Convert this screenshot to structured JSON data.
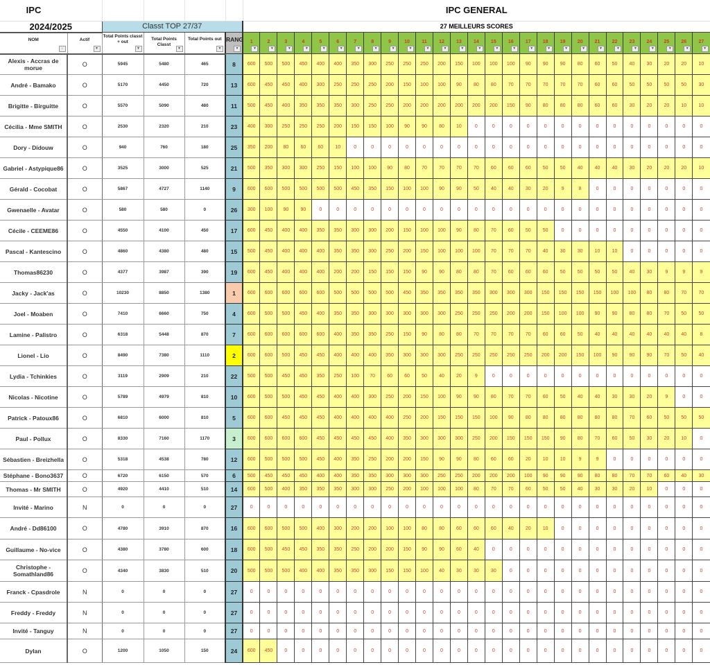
{
  "header": {
    "title_left": "IPC",
    "title_main": "IPC GENERAL",
    "season": "2024/2025",
    "classt_label": "Classt TOP 27/37",
    "best_label": "27 MEILLEURS SCORES",
    "columns": {
      "nom": "NOM",
      "actif": "Actif",
      "total_classt_out": "Total Points classt + out",
      "total_classt": "Total Points Classt",
      "total_out": "Total Points out",
      "rang": "RANG"
    },
    "score_columns": [
      "1",
      "2",
      "3",
      "4",
      "5",
      "6",
      "7",
      "8",
      "9",
      "10",
      "11",
      "12",
      "13",
      "14",
      "15",
      "16",
      "17",
      "18",
      "19",
      "20",
      "21",
      "22",
      "23",
      "24",
      "25",
      "26",
      "27"
    ],
    "filter_icon": "dropdown-arrow-icon"
  },
  "colors": {
    "score_header": "#8fc647",
    "score_filled": "#ffff99",
    "score_empty": "#ffffff",
    "rang": "#9ecad6",
    "rang_1": "#f8cbad",
    "rang_2": "#ffff00",
    "rang_3": "#c6efce",
    "classt": "#b7dee8",
    "score_text": "#cc3b2a"
  },
  "rows": [
    {
      "name": "Alexis - Accras de morue",
      "actif": "O",
      "total_classt_out": "5945",
      "total_classt": "5480",
      "total_out": "465",
      "rang": "8",
      "scores": [
        600,
        500,
        500,
        450,
        400,
        400,
        350,
        300,
        250,
        250,
        250,
        200,
        150,
        100,
        100,
        100,
        90,
        90,
        90,
        80,
        60,
        50,
        40,
        30,
        20,
        20,
        10
      ]
    },
    {
      "name": "André - Bamako",
      "actif": "O",
      "total_classt_out": "5170",
      "total_classt": "4450",
      "total_out": "720",
      "rang": "13",
      "scores": [
        600,
        450,
        450,
        400,
        300,
        250,
        250,
        250,
        200,
        150,
        100,
        100,
        90,
        80,
        80,
        70,
        70,
        70,
        70,
        70,
        60,
        60,
        50,
        50,
        50,
        50,
        30
      ]
    },
    {
      "name": "Brigitte - Birguitte",
      "actif": "O",
      "total_classt_out": "5570",
      "total_classt": "5090",
      "total_out": "480",
      "rang": "11",
      "scores": [
        500,
        450,
        400,
        350,
        350,
        350,
        300,
        250,
        250,
        200,
        200,
        200,
        200,
        200,
        200,
        150,
        90,
        80,
        80,
        80,
        60,
        60,
        30,
        20,
        20,
        10,
        10
      ]
    },
    {
      "name": "Cécilia - Mme SMITH",
      "actif": "O",
      "total_classt_out": "2530",
      "total_classt": "2320",
      "total_out": "210",
      "rang": "23",
      "scores": [
        400,
        300,
        250,
        250,
        250,
        200,
        150,
        150,
        100,
        90,
        90,
        80,
        10,
        0,
        0,
        0,
        0,
        0,
        0,
        0,
        0,
        0,
        0,
        0,
        0,
        0,
        0
      ]
    },
    {
      "name": "Dory - Didouw",
      "actif": "O",
      "total_classt_out": "940",
      "total_classt": "760",
      "total_out": "180",
      "rang": "25",
      "scores": [
        350,
        200,
        80,
        60,
        60,
        10,
        0,
        0,
        0,
        0,
        0,
        0,
        0,
        0,
        0,
        0,
        0,
        0,
        0,
        0,
        0,
        0,
        0,
        0,
        0,
        0,
        0
      ]
    },
    {
      "name": "Gabriel - Astypique86",
      "actif": "O",
      "total_classt_out": "3525",
      "total_classt": "3000",
      "total_out": "525",
      "rang": "21",
      "scores": [
        500,
        350,
        300,
        300,
        250,
        150,
        100,
        100,
        90,
        80,
        70,
        70,
        70,
        70,
        60,
        60,
        60,
        50,
        50,
        40,
        40,
        40,
        30,
        20,
        20,
        20,
        10
      ]
    },
    {
      "name": "Gérald - Cocobat",
      "actif": "O",
      "total_classt_out": "5867",
      "total_classt": "4727",
      "total_out": "1140",
      "rang": "9",
      "scores": [
        600,
        600,
        500,
        500,
        500,
        500,
        450,
        350,
        150,
        100,
        100,
        90,
        90,
        50,
        40,
        40,
        30,
        20,
        9,
        8,
        0,
        0,
        0,
        0,
        0,
        0,
        0
      ]
    },
    {
      "name": "Gwenaelle - Avatar",
      "actif": "O",
      "total_classt_out": "580",
      "total_classt": "580",
      "total_out": "0",
      "rang": "26",
      "scores": [
        300,
        100,
        90,
        90,
        0,
        0,
        0,
        0,
        0,
        0,
        0,
        0,
        0,
        0,
        0,
        0,
        0,
        0,
        0,
        0,
        0,
        0,
        0,
        0,
        0,
        0,
        0
      ]
    },
    {
      "name": "Cécile - CEEME86",
      "actif": "O",
      "total_classt_out": "4550",
      "total_classt": "4100",
      "total_out": "450",
      "rang": "17",
      "scores": [
        600,
        450,
        400,
        400,
        350,
        350,
        300,
        300,
        200,
        150,
        100,
        100,
        90,
        80,
        70,
        60,
        50,
        50,
        0,
        0,
        0,
        0,
        0,
        0,
        0,
        0,
        0
      ]
    },
    {
      "name": "Pascal - Kantescino",
      "actif": "O",
      "total_classt_out": "4860",
      "total_classt": "4380",
      "total_out": "480",
      "rang": "15",
      "scores": [
        500,
        450,
        400,
        400,
        400,
        350,
        350,
        300,
        250,
        200,
        150,
        100,
        100,
        100,
        70,
        70,
        70,
        40,
        30,
        30,
        10,
        10,
        0,
        0,
        0,
        0,
        0
      ]
    },
    {
      "name": "Thomas86230",
      "actif": "O",
      "total_classt_out": "4377",
      "total_classt": "3987",
      "total_out": "390",
      "rang": "19",
      "scores": [
        600,
        450,
        400,
        400,
        400,
        200,
        200,
        150,
        150,
        150,
        90,
        90,
        80,
        80,
        70,
        60,
        60,
        60,
        50,
        50,
        50,
        50,
        40,
        30,
        9,
        9,
        9
      ]
    },
    {
      "name": "Jacky - Jack'as",
      "actif": "O",
      "total_classt_out": "10230",
      "total_classt": "8850",
      "total_out": "1380",
      "rang": "1",
      "scores": [
        600,
        600,
        600,
        600,
        600,
        500,
        500,
        500,
        500,
        450,
        350,
        350,
        350,
        350,
        300,
        300,
        300,
        150,
        150,
        150,
        150,
        100,
        100,
        80,
        80,
        70,
        70
      ]
    },
    {
      "name": "Joel - Moaben",
      "actif": "O",
      "total_classt_out": "7410",
      "total_classt": "6660",
      "total_out": "750",
      "rang": "4",
      "scores": [
        600,
        500,
        500,
        450,
        400,
        350,
        350,
        300,
        300,
        300,
        300,
        300,
        250,
        250,
        250,
        200,
        200,
        150,
        100,
        100,
        90,
        90,
        80,
        80,
        70,
        50,
        50
      ]
    },
    {
      "name": "Lamine - Palistro",
      "actif": "O",
      "total_classt_out": "6318",
      "total_classt": "5448",
      "total_out": "870",
      "rang": "7",
      "scores": [
        600,
        600,
        600,
        600,
        600,
        400,
        350,
        350,
        250,
        150,
        90,
        80,
        80,
        70,
        70,
        70,
        70,
        60,
        60,
        50,
        40,
        40,
        40,
        40,
        40,
        40,
        8
      ]
    },
    {
      "name": "Lionel - Lio",
      "actif": "O",
      "total_classt_out": "8490",
      "total_classt": "7380",
      "total_out": "1110",
      "rang": "2",
      "scores": [
        600,
        600,
        500,
        450,
        450,
        400,
        400,
        400,
        350,
        300,
        300,
        300,
        250,
        250,
        250,
        250,
        250,
        200,
        200,
        150,
        100,
        90,
        90,
        90,
        70,
        50,
        40
      ]
    },
    {
      "name": "Lydia - Tchinkies",
      "actif": "O",
      "total_classt_out": "3119",
      "total_classt": "2909",
      "total_out": "210",
      "rang": "22",
      "scores": [
        500,
        500,
        450,
        450,
        350,
        250,
        100,
        70,
        60,
        60,
        50,
        40,
        20,
        9,
        0,
        0,
        0,
        0,
        0,
        0,
        0,
        0,
        0,
        0,
        0,
        0,
        0
      ]
    },
    {
      "name": "Nicolas - Nicotine",
      "actif": "O",
      "total_classt_out": "5789",
      "total_classt": "4979",
      "total_out": "810",
      "rang": "10",
      "scores": [
        600,
        500,
        500,
        450,
        450,
        400,
        400,
        300,
        250,
        200,
        150,
        100,
        90,
        90,
        80,
        70,
        70,
        60,
        50,
        40,
        40,
        30,
        30,
        20,
        9,
        0,
        0
      ]
    },
    {
      "name": "Patrick - Patoux86",
      "actif": "O",
      "total_classt_out": "6810",
      "total_classt": "6000",
      "total_out": "810",
      "rang": "5",
      "scores": [
        600,
        600,
        450,
        450,
        450,
        400,
        400,
        400,
        400,
        250,
        200,
        150,
        150,
        150,
        100,
        90,
        80,
        80,
        80,
        80,
        80,
        80,
        70,
        60,
        50,
        50,
        50
      ]
    },
    {
      "name": "Paul - Pollux",
      "actif": "O",
      "total_classt_out": "8330",
      "total_classt": "7160",
      "total_out": "1170",
      "rang": "3",
      "scores": [
        600,
        600,
        600,
        600,
        450,
        450,
        450,
        450,
        400,
        350,
        300,
        300,
        300,
        250,
        200,
        150,
        150,
        150,
        90,
        80,
        70,
        60,
        50,
        30,
        20,
        10,
        0
      ]
    },
    {
      "name": "Sébastien - Breizhella",
      "actif": "O",
      "total_classt_out": "5318",
      "total_classt": "4538",
      "total_out": "780",
      "rang": "12",
      "scores": [
        600,
        500,
        500,
        500,
        450,
        400,
        350,
        250,
        200,
        200,
        150,
        90,
        90,
        80,
        60,
        60,
        20,
        10,
        10,
        9,
        9,
        0,
        0,
        0,
        0,
        0,
        0
      ]
    },
    {
      "name": "Stéphane - Bono3637",
      "actif": "O",
      "total_classt_out": "6720",
      "total_classt": "6150",
      "total_out": "570",
      "rang": "6",
      "scores": [
        500,
        450,
        450,
        450,
        400,
        400,
        350,
        350,
        300,
        300,
        300,
        250,
        250,
        200,
        200,
        200,
        100,
        90,
        90,
        90,
        80,
        80,
        70,
        70,
        60,
        40,
        30
      ]
    },
    {
      "name": "Thomas - Mr SMITH",
      "actif": "O",
      "total_classt_out": "4920",
      "total_classt": "4410",
      "total_out": "510",
      "rang": "14",
      "scores": [
        600,
        500,
        400,
        350,
        350,
        350,
        300,
        300,
        250,
        200,
        100,
        100,
        100,
        80,
        70,
        70,
        60,
        50,
        50,
        40,
        30,
        30,
        20,
        10,
        0,
        0,
        0
      ]
    },
    {
      "name": "Invité - Marino",
      "actif": "N",
      "total_classt_out": "0",
      "total_classt": "0",
      "total_out": "0",
      "rang": "27",
      "scores": [
        0,
        0,
        0,
        0,
        0,
        0,
        0,
        0,
        0,
        0,
        0,
        0,
        0,
        0,
        0,
        0,
        0,
        0,
        0,
        0,
        0,
        0,
        0,
        0,
        0,
        0,
        0
      ]
    },
    {
      "name": "André - Dd86100",
      "actif": "O",
      "total_classt_out": "4780",
      "total_classt": "3910",
      "total_out": "870",
      "rang": "16",
      "scores": [
        600,
        600,
        500,
        500,
        400,
        300,
        200,
        200,
        100,
        100,
        80,
        80,
        60,
        60,
        60,
        40,
        20,
        10,
        0,
        0,
        0,
        0,
        0,
        0,
        0,
        0,
        0
      ]
    },
    {
      "name": "Guillaume - No-vice",
      "actif": "O",
      "total_classt_out": "4380",
      "total_classt": "3780",
      "total_out": "600",
      "rang": "18",
      "scores": [
        600,
        500,
        450,
        450,
        350,
        350,
        250,
        200,
        200,
        150,
        90,
        90,
        60,
        40,
        0,
        0,
        0,
        0,
        0,
        0,
        0,
        0,
        0,
        0,
        0,
        0,
        0
      ]
    },
    {
      "name": "Christophe - Somathland86",
      "actif": "O",
      "total_classt_out": "4340",
      "total_classt": "3830",
      "total_out": "510",
      "rang": "20",
      "scores": [
        500,
        500,
        500,
        400,
        400,
        350,
        350,
        300,
        150,
        150,
        100,
        40,
        30,
        30,
        30,
        0,
        0,
        0,
        0,
        0,
        0,
        0,
        0,
        0,
        0,
        0,
        0
      ]
    },
    {
      "name": "Franck - Cpasdrole",
      "actif": "N",
      "total_classt_out": "0",
      "total_classt": "0",
      "total_out": "0",
      "rang": "27",
      "scores": [
        0,
        0,
        0,
        0,
        0,
        0,
        0,
        0,
        0,
        0,
        0,
        0,
        0,
        0,
        0,
        0,
        0,
        0,
        0,
        0,
        0,
        0,
        0,
        0,
        0,
        0,
        0
      ]
    },
    {
      "name": "Freddy - Freddy",
      "actif": "N",
      "total_classt_out": "0",
      "total_classt": "0",
      "total_out": "0",
      "rang": "27",
      "scores": [
        0,
        0,
        0,
        0,
        0,
        0,
        0,
        0,
        0,
        0,
        0,
        0,
        0,
        0,
        0,
        0,
        0,
        0,
        0,
        0,
        0,
        0,
        0,
        0,
        0,
        0,
        0
      ]
    },
    {
      "name": "Invité - Tanguy",
      "actif": "N",
      "total_classt_out": "0",
      "total_classt": "0",
      "total_out": "0",
      "rang": "27",
      "scores": [
        0,
        0,
        0,
        0,
        0,
        0,
        0,
        0,
        0,
        0,
        0,
        0,
        0,
        0,
        0,
        0,
        0,
        0,
        0,
        0,
        0,
        0,
        0,
        0,
        0,
        0,
        0
      ]
    },
    {
      "name": "Dylan",
      "actif": "O",
      "total_classt_out": "1200",
      "total_classt": "1050",
      "total_out": "150",
      "rang": "24",
      "scores": [
        600,
        450,
        0,
        0,
        0,
        0,
        0,
        0,
        0,
        0,
        0,
        0,
        0,
        0,
        0,
        0,
        0,
        0,
        0,
        0,
        0,
        0,
        0,
        0,
        0,
        0,
        0
      ]
    }
  ]
}
